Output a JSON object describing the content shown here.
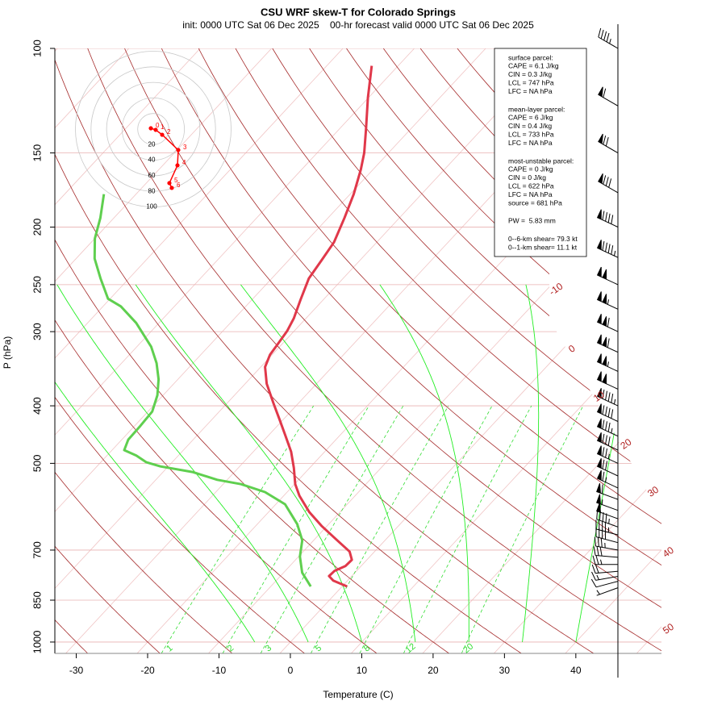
{
  "chart_data": {
    "type": "skew-t",
    "title": "CSU WRF skew-T for Colorado Springs",
    "subtitle": "init: 0000 UTC Sat 06 Dec 2025    00-hr forecast valid 0000 UTC Sat 06 Dec 2025",
    "ylabel": "P (hPa)",
    "xlabel": "Temperature (C)",
    "xlim": [
      -33,
      52
    ],
    "xticks": [
      -30,
      -20,
      -10,
      0,
      10,
      20,
      30,
      40
    ],
    "ylim": [
      1045,
      100
    ],
    "yticks": [
      100,
      150,
      200,
      250,
      300,
      400,
      500,
      700,
      850,
      1000
    ],
    "ylog": true,
    "isotherm_labels": [
      -10,
      0,
      10,
      20,
      30,
      40,
      50
    ],
    "isotherm_label_color": "#b22222",
    "mixing_ratio_labels": [
      1,
      2,
      3,
      5,
      8,
      12,
      20
    ],
    "mixing_ratio_color": "#33dd33",
    "series": [
      {
        "color": "#e0384a",
        "pressure": [
          806,
          788,
          774,
          759,
          745,
          727,
          704,
          674,
          637,
          604,
          567,
          542,
          509,
          478,
          449,
          422,
          396,
          367,
          344,
          328,
          315,
          299,
          285,
          265,
          244,
          227,
          212,
          193,
          176,
          160,
          150,
          137,
          121,
          107
        ],
        "values": [
          0.7,
          -2.0,
          -3.2,
          -3.1,
          -2.2,
          -2.1,
          -3.5,
          -6.7,
          -10.8,
          -14.3,
          -17.8,
          -19.9,
          -22.2,
          -24.7,
          -27.6,
          -30.5,
          -33.5,
          -37.0,
          -39.4,
          -40.3,
          -40.6,
          -41.0,
          -41.7,
          -43.2,
          -44.8,
          -45.4,
          -46.0,
          -47.7,
          -49.5,
          -51.7,
          -53.4,
          -56.2,
          -60.1,
          -63.7
        ]
      },
      {
        "color": "#5fcf4f",
        "pressure": [
          806,
          764,
          718,
          674,
          633,
          586,
          559,
          542,
          533,
          517,
          506,
          498,
          485,
          475,
          456,
          432,
          409,
          384,
          361,
          339,
          318,
          290,
          272,
          264,
          244,
          226,
          209,
          193,
          176
        ],
        "values": [
          -4.4,
          -7.4,
          -9.8,
          -11.6,
          -14.4,
          -18.7,
          -23.1,
          -27.5,
          -31.4,
          -35.9,
          -41.1,
          -43.6,
          -45.9,
          -48.3,
          -49.1,
          -49.2,
          -49.4,
          -50.8,
          -52.7,
          -55.1,
          -58.0,
          -63.2,
          -67.5,
          -70.3,
          -74.0,
          -77.4,
          -80.0,
          -81.9,
          -84.5
        ]
      }
    ],
    "hodograph": {
      "rings": [
        20,
        40,
        60,
        80,
        100
      ],
      "u": [
        -3.1,
        3.1,
        11.4,
        32.1,
        31.1,
        20.7,
        23.8
      ],
      "v": [
        1.0,
        -1.0,
        -7.3,
        -26.9,
        -46.6,
        -69.4,
        -75.6
      ],
      "labels": [
        0,
        1,
        2,
        3,
        4,
        5,
        6
      ],
      "color": "#ff0000"
    },
    "winds": {
      "pressure": [
        810,
        790,
        775,
        760,
        740,
        720,
        700,
        680,
        660,
        640,
        620,
        600,
        575,
        550,
        525,
        500,
        475,
        450,
        425,
        400,
        375,
        350,
        325,
        300,
        275,
        250,
        225,
        200,
        175,
        150,
        125,
        100
      ],
      "direction": [
        250,
        255,
        260,
        265,
        270,
        275,
        280,
        285,
        285,
        290,
        290,
        290,
        290,
        295,
        295,
        295,
        295,
        295,
        295,
        295,
        295,
        295,
        295,
        295,
        295,
        295,
        295,
        295,
        300,
        300,
        300,
        300
      ],
      "speed": [
        5,
        10,
        15,
        20,
        25,
        30,
        35,
        40,
        45,
        45,
        50,
        55,
        60,
        65,
        70,
        75,
        80,
        85,
        90,
        95,
        100,
        105,
        110,
        110,
        105,
        100,
        95,
        90,
        80,
        70,
        60,
        45
      ]
    },
    "stats": [
      [
        "surface parcel:",
        "CAPE = 6.1 J/kg",
        "CIN = 0.3 J/kg",
        "LCL = 747 hPa",
        "LFC = NA hPa"
      ],
      [
        "mean-layer parcel:",
        "CAPE = 6 J/kg",
        "CIN = 0.4 J/kg",
        "LCL = 733 hPa",
        "LFC = NA hPa"
      ],
      [
        "most-unstable parcel:",
        "CAPE = 0 J/kg",
        "CIN = 0 J/kg",
        "LCL = 622 hPa",
        "LFC = NA hPa",
        "source = 681 hPa"
      ],
      [
        "PW =  5.83 mm"
      ],
      [
        "0--6-km shear= 79.3 kt",
        "0--1-km shear= 11.1 kt"
      ]
    ]
  }
}
